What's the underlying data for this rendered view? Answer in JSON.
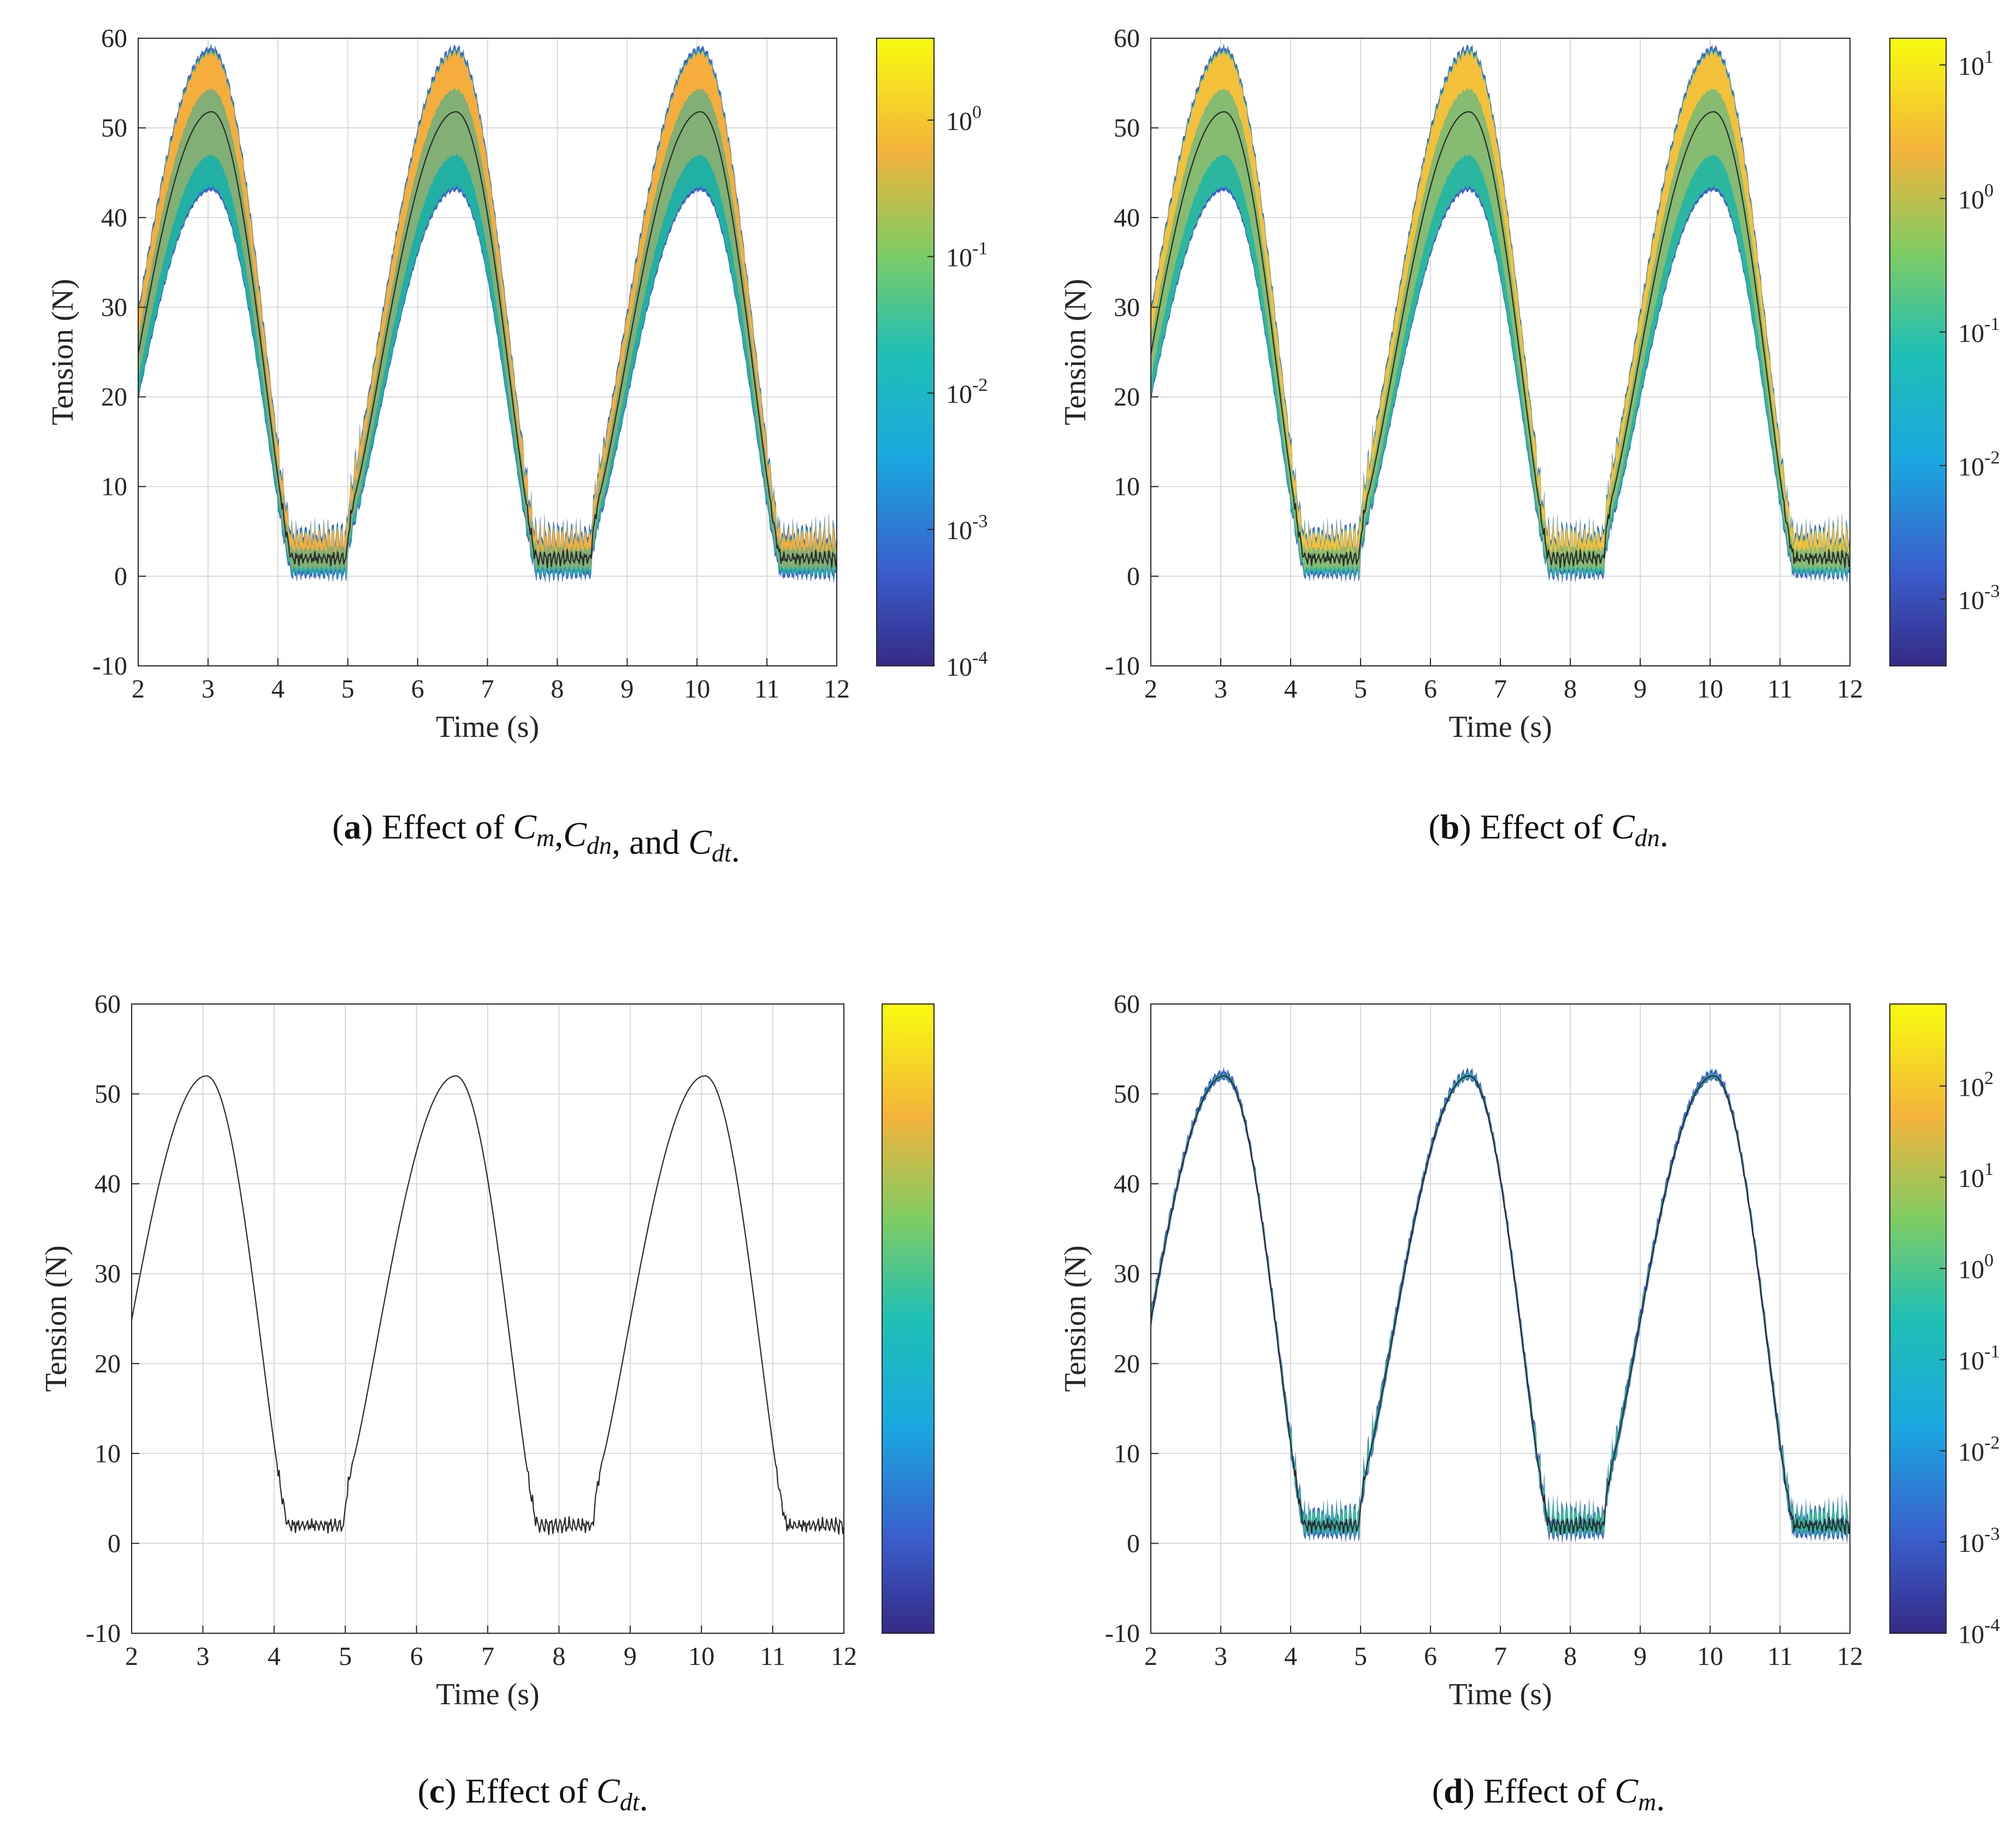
{
  "chart_data": [
    {
      "id": "a",
      "type": "area",
      "caption": {
        "label": "a",
        "text": "Effect of ",
        "parts": [
          "C",
          "m",
          ",",
          "C",
          "dn",
          ", and ",
          "C",
          "dt",
          "."
        ]
      },
      "xlabel": "Time (s)",
      "ylabel": "Tension (N)",
      "xlim": [
        2,
        12
      ],
      "ylim": [
        -10,
        60
      ],
      "xticks": [
        "2",
        "3",
        "4",
        "5",
        "6",
        "7",
        "8",
        "9",
        "10",
        "11",
        "12"
      ],
      "yticks": [
        "-10",
        "0",
        "10",
        "20",
        "30",
        "40",
        "50",
        "60"
      ],
      "grid": true,
      "band": {
        "upper_peak": 59,
        "lower_peak": 43,
        "upper_trough": 5,
        "lower_trough": 0,
        "upper_color": "#f6ad3c",
        "lower_color": "#21b0a4",
        "edge_color": "#3e5fc9"
      },
      "mean_line": {
        "peak": 51.8,
        "trough": 2,
        "color": "#2b2b2b"
      },
      "colorbar": {
        "scale": "log",
        "range": [
          -4,
          0.6
        ],
        "ticks": [
          {
            "base": "10",
            "exp": "0"
          },
          {
            "base": "10",
            "exp": "-1"
          },
          {
            "base": "10",
            "exp": "-2"
          },
          {
            "base": "10",
            "exp": "-3"
          },
          {
            "base": "10",
            "exp": "-4"
          }
        ],
        "tick_values": [
          0,
          -1,
          -2,
          -3,
          -4
        ]
      }
    },
    {
      "id": "b",
      "type": "area",
      "caption": {
        "label": "b",
        "text": "Effect of ",
        "parts": [
          "C",
          "dn",
          "."
        ]
      },
      "xlabel": "Time (s)",
      "ylabel": "Tension (N)",
      "xlim": [
        2,
        12
      ],
      "ylim": [
        -10,
        60
      ],
      "xticks": [
        "2",
        "3",
        "4",
        "5",
        "6",
        "7",
        "8",
        "9",
        "10",
        "11",
        "12"
      ],
      "yticks": [
        "-10",
        "0",
        "10",
        "20",
        "30",
        "40",
        "50",
        "60"
      ],
      "grid": true,
      "band": {
        "upper_peak": 59,
        "lower_peak": 43,
        "upper_trough": 5,
        "lower_trough": 0,
        "upper_color": "#f5c03a",
        "lower_color": "#2ab7a0",
        "edge_color": "#3e5fc9"
      },
      "mean_line": {
        "peak": 51.8,
        "trough": 2,
        "color": "#2b2b2b"
      },
      "colorbar": {
        "scale": "log",
        "range": [
          -3.5,
          1.2
        ],
        "ticks": [
          {
            "base": "10",
            "exp": "1"
          },
          {
            "base": "10",
            "exp": "0"
          },
          {
            "base": "10",
            "exp": "-1"
          },
          {
            "base": "10",
            "exp": "-2"
          },
          {
            "base": "10",
            "exp": "-3"
          }
        ],
        "tick_values": [
          1,
          0,
          -1,
          -2,
          -3
        ]
      }
    },
    {
      "id": "c",
      "type": "line",
      "caption": {
        "label": "c",
        "text": "Effect of ",
        "parts": [
          "C",
          "dt",
          "."
        ]
      },
      "xlabel": "Time (s)",
      "ylabel": "Tension (N)",
      "xlim": [
        2,
        12
      ],
      "ylim": [
        -10,
        60
      ],
      "xticks": [
        "2",
        "3",
        "4",
        "5",
        "6",
        "7",
        "8",
        "9",
        "10",
        "11",
        "12"
      ],
      "yticks": [
        "-10",
        "0",
        "10",
        "20",
        "30",
        "40",
        "50",
        "60"
      ],
      "grid": true,
      "band": null,
      "mean_line": {
        "peak": 52,
        "trough": 2,
        "color": "#2b2b2b"
      },
      "colorbar": {
        "scale": "log",
        "range": [
          0,
          1
        ],
        "ticks": [],
        "tick_values": []
      }
    },
    {
      "id": "d",
      "type": "area",
      "caption": {
        "label": "d",
        "text": "Effect of ",
        "parts": [
          "C",
          "m",
          "."
        ]
      },
      "xlabel": "Time (s)",
      "ylabel": "Tension (N)",
      "xlim": [
        2,
        12
      ],
      "ylim": [
        -10,
        60
      ],
      "xticks": [
        "2",
        "3",
        "4",
        "5",
        "6",
        "7",
        "8",
        "9",
        "10",
        "11",
        "12"
      ],
      "yticks": [
        "-10",
        "0",
        "10",
        "20",
        "30",
        "40",
        "50",
        "60"
      ],
      "grid": true,
      "band": {
        "upper_peak": 52.6,
        "lower_peak": 51.6,
        "upper_trough": 3.5,
        "lower_trough": 0.8,
        "upper_color": "#3cbf8e",
        "lower_color": "#2ca5a5",
        "edge_color": "#3e5fc9"
      },
      "mean_line": {
        "peak": 52,
        "trough": 2,
        "color": "#2b2b2b"
      },
      "colorbar": {
        "scale": "log",
        "range": [
          -4,
          2.9
        ],
        "ticks": [
          {
            "base": "10",
            "exp": "2"
          },
          {
            "base": "10",
            "exp": "1"
          },
          {
            "base": "10",
            "exp": "0"
          },
          {
            "base": "10",
            "exp": "-1"
          },
          {
            "base": "10",
            "exp": "-2"
          },
          {
            "base": "10",
            "exp": "-3"
          },
          {
            "base": "10",
            "exp": "-4"
          }
        ],
        "tick_values": [
          2,
          1,
          0,
          -1,
          -2,
          -3,
          -4
        ]
      }
    }
  ]
}
